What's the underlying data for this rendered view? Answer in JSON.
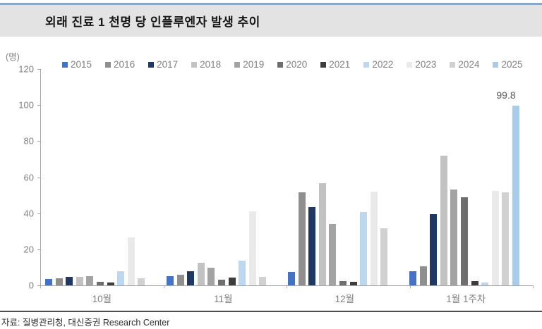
{
  "title": "외래 진료 1 천명 당 인플루엔자 발생 추이",
  "source": "자료: 질병관리청, 대신증권 Research Center",
  "chart_data": {
    "type": "bar",
    "title": "외래 진료 1 천명 당 인플루엔자 발생 추이",
    "unit_label": "(명)",
    "categories": [
      "10월",
      "11월",
      "12월",
      "1월 1주차"
    ],
    "series": [
      {
        "name": "2015",
        "color": "#4472C4",
        "values": [
          3.7,
          5.2,
          7.6,
          7.8
        ]
      },
      {
        "name": "2016",
        "color": "#8F8F8F",
        "values": [
          4.1,
          5.9,
          51.5,
          10.5
        ]
      },
      {
        "name": "2017",
        "color": "#1F3864",
        "values": [
          4.7,
          7.8,
          43.5,
          39.5
        ]
      },
      {
        "name": "2018",
        "color": "#C2C2C2",
        "values": [
          4.6,
          12.7,
          56.5,
          72.0
        ]
      },
      {
        "name": "2019",
        "color": "#A3A3A3",
        "values": [
          5.0,
          9.8,
          34.0,
          53.0
        ]
      },
      {
        "name": "2020",
        "color": "#6E6E6E",
        "values": [
          2.0,
          3.3,
          2.2,
          49.0
        ]
      },
      {
        "name": "2021",
        "color": "#3D3D3D",
        "values": [
          1.5,
          4.2,
          1.8,
          2.3
        ]
      },
      {
        "name": "2022",
        "color": "#BDD7EE",
        "values": [
          7.8,
          13.5,
          40.5,
          1.5
        ]
      },
      {
        "name": "2023",
        "color": "#EAEAEA",
        "values": [
          26.5,
          41.0,
          52.0,
          52.3
        ]
      },
      {
        "name": "2024",
        "color": "#D1D1D1",
        "values": [
          3.8,
          4.8,
          31.5,
          51.7
        ]
      },
      {
        "name": "2025",
        "color": "#A9CDE9",
        "values": [
          null,
          null,
          null,
          99.8
        ]
      }
    ],
    "ylim": [
      0,
      120
    ],
    "yticks": [
      0,
      20,
      40,
      60,
      80,
      100,
      120
    ],
    "grid": false,
    "legend_position": "top",
    "annotation": {
      "text": "99.8",
      "series": "2025",
      "category": "1월 1주차"
    }
  },
  "colors": {
    "accent_line": "#8AA5CB",
    "title_bar_bg": "#E3E3E3",
    "axis": "#A8A8A8",
    "muted_text": "#7F7F7F",
    "divider": "#4D4D4D"
  }
}
